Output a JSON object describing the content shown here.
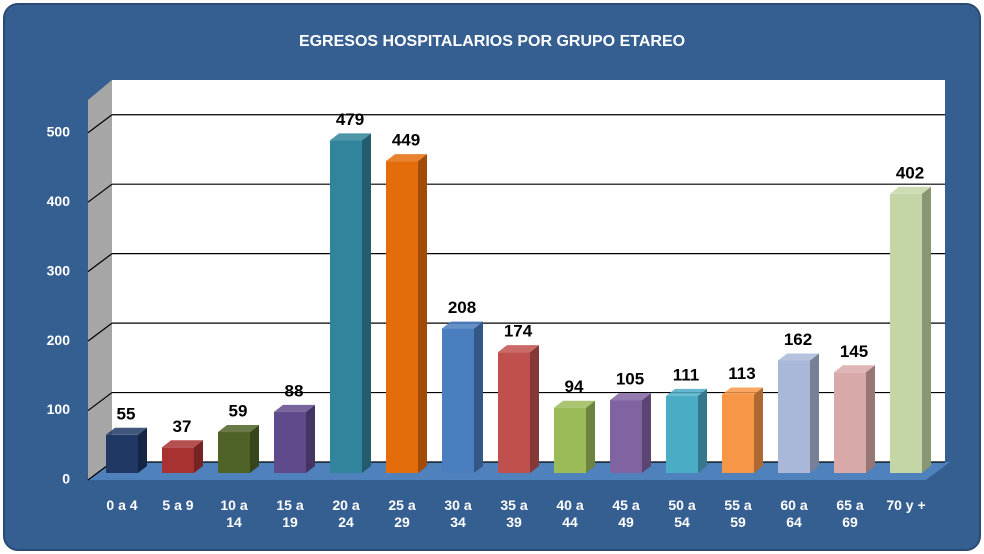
{
  "chart_data": {
    "type": "bar3d",
    "title": "EGRESOS HOSPITALARIOS POR GRUPO ETAREO",
    "categories": [
      "0 a 4",
      "5 a 9",
      "10 a 14",
      "15 a 19",
      "20 a 24",
      "25 a 29",
      "30 a 34",
      "35 a 39",
      "40 a 44",
      "45 a 49",
      "50 a 54",
      "55 a 59",
      "60 a 64",
      "65 a 69",
      "70 y +"
    ],
    "values": [
      55,
      37,
      59,
      88,
      479,
      449,
      208,
      174,
      94,
      105,
      111,
      113,
      162,
      145,
      402
    ],
    "colors": [
      "#1f3864",
      "#a83232",
      "#4f6228",
      "#5f4a8b",
      "#31849b",
      "#e46c0a",
      "#4a7ebf",
      "#c0504d",
      "#9bbb59",
      "#8064a2",
      "#4bacc6",
      "#f79646",
      "#a9b8d8",
      "#d8a9a8",
      "#c4d6a6"
    ],
    "ylim": [
      0,
      550
    ],
    "yticks": [
      0,
      100,
      200,
      300,
      400,
      500
    ],
    "grid": true
  }
}
